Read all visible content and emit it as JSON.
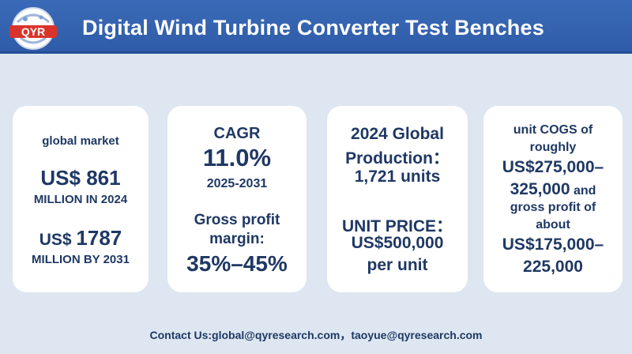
{
  "header": {
    "logo_text": "QYR",
    "title": "Digital Wind Turbine Converter Test Benches"
  },
  "cards": [
    {
      "label": "global market",
      "value1_prefix": "US$ ",
      "value1_number": "861",
      "value1_suffix": "MILLION IN 2024",
      "value2_prefix": "US$ ",
      "value2_number": "1787",
      "value2_suffix": "MILLION BY 2031"
    },
    {
      "label": "CAGR",
      "value": "11.0%",
      "period": "2025-2031",
      "margin_label_line1": "Gross profit",
      "margin_label_line2": "margin:",
      "margin_value": "35%–45%"
    },
    {
      "line1": "2024 Global",
      "line2": "Production：",
      "line3": "1,721 units",
      "line4": "UNIT PRICE：",
      "line5": "US$500,000",
      "line6": "per unit"
    },
    {
      "line1": "unit COGS of",
      "line2": "roughly",
      "line3": "US$275,000–",
      "line4_main": "325,000",
      "line4_tail": " and",
      "line5": "gross profit of",
      "line6": "about",
      "line7": "US$175,000–",
      "line8": "225,000"
    }
  ],
  "footer": {
    "contact": "Contact Us:global@qyresearch.com，taoyue@qyresearch.com"
  },
  "colors": {
    "header_bg": "#2f5ca8",
    "page_bg": "#dde6f1",
    "text": "#1f3864",
    "logo_red": "#d9342b"
  }
}
